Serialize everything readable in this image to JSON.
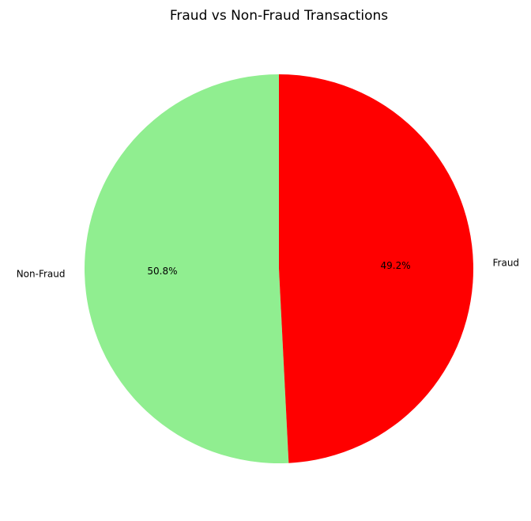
{
  "chart_data": {
    "type": "pie",
    "title": "Fraud vs Non-Fraud Transactions",
    "start_angle_deg": 90,
    "direction": "counterclockwise",
    "slices": [
      {
        "label": "Non-Fraud",
        "value": 50.8,
        "pct_label": "50.8%",
        "color": "#90ee90"
      },
      {
        "label": "Fraud",
        "value": 49.2,
        "pct_label": "49.2%",
        "color": "#ff0000"
      }
    ],
    "legend": "none"
  }
}
